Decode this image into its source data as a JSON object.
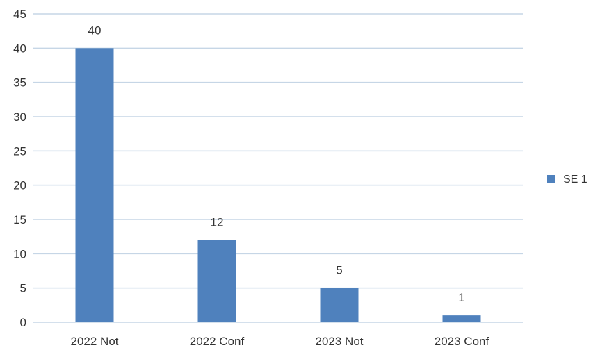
{
  "chart_data": {
    "type": "bar",
    "categories": [
      "2022 Not",
      "2022 Conf",
      "2023 Not",
      "2023 Conf"
    ],
    "series": [
      {
        "name": "SE 1",
        "values": [
          40,
          12,
          5,
          1
        ],
        "color": "#4f81bd"
      }
    ],
    "ylim": [
      0,
      45
    ],
    "yticks": [
      0,
      5,
      10,
      15,
      20,
      25,
      30,
      35,
      40,
      45
    ],
    "data_labels": true,
    "grid": true,
    "gridline_color": "#c6d6e6",
    "legend": {
      "position": "right",
      "entries": [
        "SE 1"
      ]
    }
  }
}
